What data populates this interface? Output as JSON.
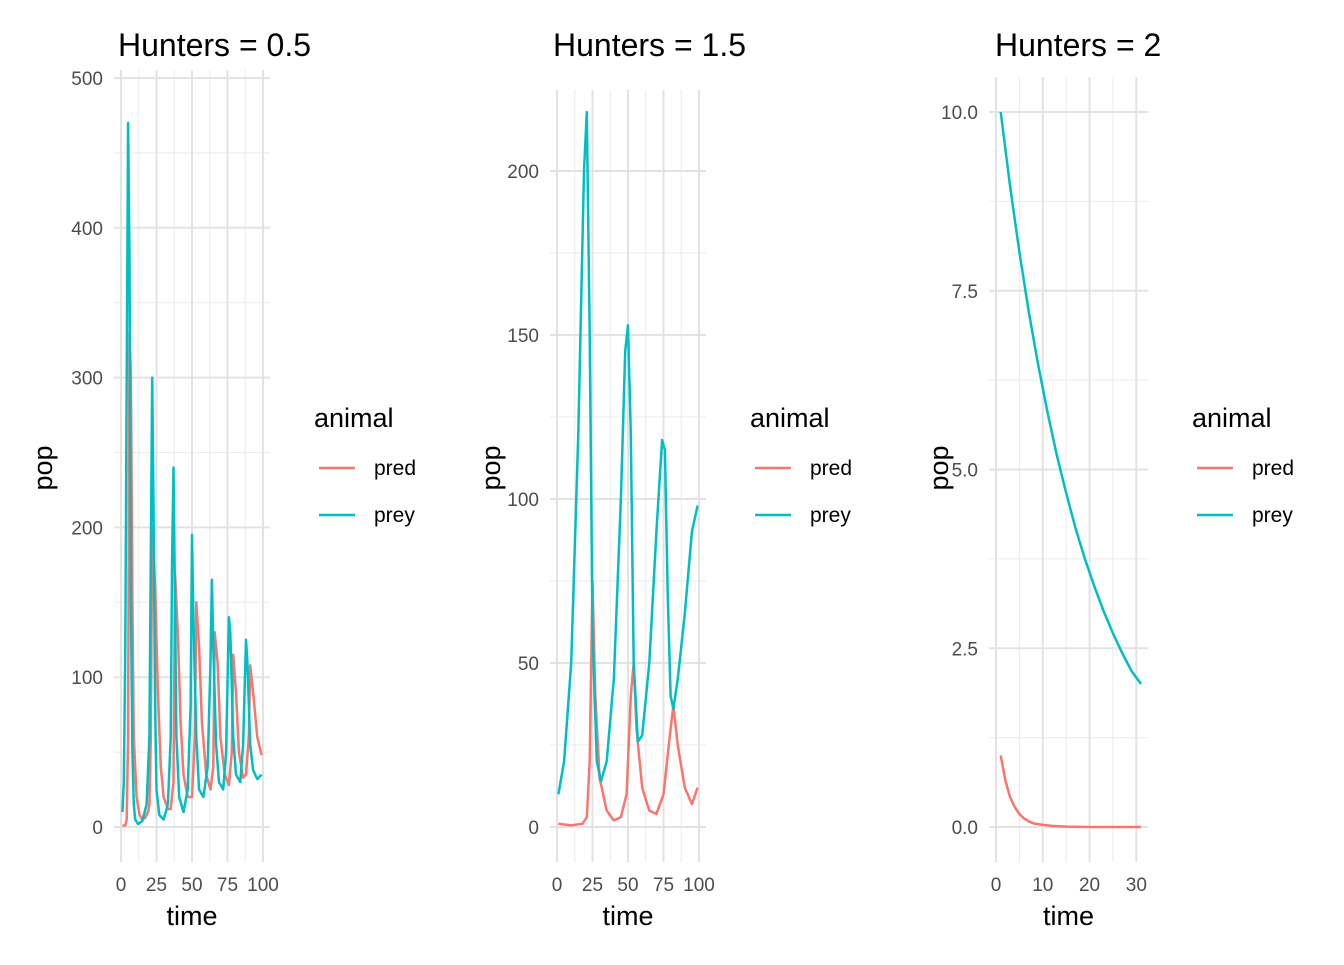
{
  "chart_data": [
    {
      "type": "line",
      "title": "Hunters = 0.5",
      "xlabel": "time",
      "ylabel": "pop",
      "xlim": [
        0,
        100
      ],
      "ylim": [
        0,
        500
      ],
      "x_ticks": [
        0,
        25,
        50,
        75,
        100
      ],
      "x_tick_labels": [
        "0",
        "25",
        "50",
        "75",
        "100"
      ],
      "y_ticks": [
        0,
        100,
        200,
        300,
        400,
        500
      ],
      "y_tick_labels": [
        "0",
        "100",
        "200",
        "300",
        "400",
        "500"
      ],
      "legend": {
        "title": "animal",
        "entries": [
          "pred",
          "prey"
        ],
        "position": "right"
      },
      "grid": true,
      "series": [
        {
          "name": "pred",
          "color": "#F8766D",
          "points": [
            [
              1,
              1
            ],
            [
              3,
              1
            ],
            [
              4,
              5
            ],
            [
              5,
              60
            ],
            [
              6,
              330
            ],
            [
              7,
              300
            ],
            [
              8,
              150
            ],
            [
              9,
              60
            ],
            [
              11,
              20
            ],
            [
              13,
              8
            ],
            [
              15,
              5
            ],
            [
              17,
              6
            ],
            [
              19,
              10
            ],
            [
              20,
              15
            ],
            [
              21,
              60
            ],
            [
              22,
              200
            ],
            [
              24,
              160
            ],
            [
              26,
              90
            ],
            [
              28,
              40
            ],
            [
              30,
              20
            ],
            [
              33,
              12
            ],
            [
              35,
              12
            ],
            [
              37,
              30
            ],
            [
              38,
              170
            ],
            [
              40,
              130
            ],
            [
              42,
              70
            ],
            [
              44,
              35
            ],
            [
              47,
              20
            ],
            [
              50,
              20
            ],
            [
              52,
              60
            ],
            [
              53,
              150
            ],
            [
              55,
              120
            ],
            [
              57,
              70
            ],
            [
              60,
              35
            ],
            [
              63,
              25
            ],
            [
              65,
              40
            ],
            [
              66,
              130
            ],
            [
              68,
              110
            ],
            [
              70,
              60
            ],
            [
              73,
              35
            ],
            [
              76,
              28
            ],
            [
              78,
              50
            ],
            [
              79,
              115
            ],
            [
              81,
              90
            ],
            [
              83,
              50
            ],
            [
              86,
              33
            ],
            [
              88,
              35
            ],
            [
              90,
              60
            ],
            [
              91,
              108
            ],
            [
              93,
              90
            ],
            [
              96,
              60
            ],
            [
              99,
              48
            ]
          ]
        },
        {
          "name": "prey",
          "color": "#00BFC4",
          "points": [
            [
              1,
              10
            ],
            [
              2,
              30
            ],
            [
              3,
              120
            ],
            [
              4,
              300
            ],
            [
              5,
              470
            ],
            [
              6,
              380
            ],
            [
              7,
              150
            ],
            [
              8,
              50
            ],
            [
              9,
              15
            ],
            [
              10,
              5
            ],
            [
              12,
              2
            ],
            [
              15,
              4
            ],
            [
              18,
              15
            ],
            [
              20,
              60
            ],
            [
              21,
              180
            ],
            [
              22,
              300
            ],
            [
              23,
              200
            ],
            [
              24,
              80
            ],
            [
              25,
              25
            ],
            [
              27,
              8
            ],
            [
              30,
              5
            ],
            [
              33,
              15
            ],
            [
              35,
              60
            ],
            [
              36,
              180
            ],
            [
              37,
              240
            ],
            [
              38,
              150
            ],
            [
              39,
              60
            ],
            [
              41,
              20
            ],
            [
              44,
              10
            ],
            [
              47,
              25
            ],
            [
              49,
              80
            ],
            [
              50,
              195
            ],
            [
              51,
              140
            ],
            [
              53,
              60
            ],
            [
              55,
              25
            ],
            [
              58,
              20
            ],
            [
              61,
              40
            ],
            [
              63,
              110
            ],
            [
              64,
              165
            ],
            [
              65,
              120
            ],
            [
              67,
              55
            ],
            [
              69,
              30
            ],
            [
              72,
              25
            ],
            [
              74,
              50
            ],
            [
              76,
              140
            ],
            [
              77,
              130
            ],
            [
              79,
              60
            ],
            [
              81,
              35
            ],
            [
              84,
              30
            ],
            [
              86,
              55
            ],
            [
              88,
              125
            ],
            [
              89,
              110
            ],
            [
              91,
              55
            ],
            [
              93,
              38
            ],
            [
              96,
              32
            ],
            [
              99,
              35
            ]
          ]
        }
      ]
    },
    {
      "type": "line",
      "title": "Hunters = 1.5",
      "xlabel": "time",
      "ylabel": "pop",
      "xlim": [
        0,
        100
      ],
      "ylim": [
        0,
        225
      ],
      "x_ticks": [
        0,
        25,
        50,
        75,
        100
      ],
      "x_tick_labels": [
        "0",
        "25",
        "50",
        "75",
        "100"
      ],
      "y_ticks": [
        0,
        50,
        100,
        150,
        200
      ],
      "y_tick_labels": [
        "0",
        "50",
        "100",
        "150",
        "200"
      ],
      "legend": {
        "title": "animal",
        "entries": [
          "pred",
          "prey"
        ],
        "position": "right"
      },
      "grid": true,
      "series": [
        {
          "name": "pred",
          "color": "#F8766D",
          "points": [
            [
              1,
              1
            ],
            [
              10,
              0.5
            ],
            [
              18,
              1
            ],
            [
              21,
              3
            ],
            [
              23,
              20
            ],
            [
              25,
              75
            ],
            [
              27,
              40
            ],
            [
              30,
              15
            ],
            [
              35,
              5
            ],
            [
              40,
              2
            ],
            [
              45,
              3
            ],
            [
              49,
              10
            ],
            [
              52,
              40
            ],
            [
              54,
              50
            ],
            [
              56,
              30
            ],
            [
              60,
              12
            ],
            [
              65,
              5
            ],
            [
              70,
              4
            ],
            [
              75,
              10
            ],
            [
              80,
              30
            ],
            [
              82,
              37
            ],
            [
              85,
              25
            ],
            [
              90,
              12
            ],
            [
              95,
              7
            ],
            [
              99,
              12
            ]
          ]
        },
        {
          "name": "prey",
          "color": "#00BFC4",
          "points": [
            [
              1,
              10
            ],
            [
              5,
              20
            ],
            [
              10,
              50
            ],
            [
              15,
              120
            ],
            [
              19,
              200
            ],
            [
              21,
              218
            ],
            [
              23,
              150
            ],
            [
              25,
              60
            ],
            [
              28,
              20
            ],
            [
              31,
              14
            ],
            [
              35,
              20
            ],
            [
              40,
              45
            ],
            [
              45,
              100
            ],
            [
              48,
              145
            ],
            [
              50,
              153
            ],
            [
              52,
              120
            ],
            [
              54,
              50
            ],
            [
              57,
              26
            ],
            [
              60,
              28
            ],
            [
              65,
              50
            ],
            [
              70,
              90
            ],
            [
              74,
              118
            ],
            [
              76,
              115
            ],
            [
              78,
              70
            ],
            [
              80,
              40
            ],
            [
              82,
              36
            ],
            [
              85,
              45
            ],
            [
              90,
              65
            ],
            [
              95,
              90
            ],
            [
              99,
              98
            ]
          ]
        }
      ]
    },
    {
      "type": "line",
      "title": "Hunters = 2",
      "xlabel": "time",
      "ylabel": "pop",
      "xlim": [
        0,
        31
      ],
      "ylim": [
        0,
        10
      ],
      "x_ticks": [
        0,
        10,
        20,
        30
      ],
      "x_tick_labels": [
        "0",
        "10",
        "20",
        "30"
      ],
      "y_ticks": [
        0,
        2.5,
        5,
        7.5,
        10
      ],
      "y_tick_labels": [
        "0.0",
        "2.5",
        "5.0",
        "7.5",
        "10.0"
      ],
      "legend": {
        "title": "animal",
        "entries": [
          "pred",
          "prey"
        ],
        "position": "right"
      },
      "grid": true,
      "series": [
        {
          "name": "pred",
          "color": "#F8766D",
          "points": [
            [
              1,
              1
            ],
            [
              2,
              0.65
            ],
            [
              3,
              0.42
            ],
            [
              4,
              0.28
            ],
            [
              5,
              0.18
            ],
            [
              6,
              0.12
            ],
            [
              7,
              0.08
            ],
            [
              8,
              0.05
            ],
            [
              10,
              0.03
            ],
            [
              12,
              0.015
            ],
            [
              15,
              0.005
            ],
            [
              20,
              0
            ],
            [
              25,
              0
            ],
            [
              31,
              0
            ]
          ]
        },
        {
          "name": "prey",
          "color": "#00BFC4",
          "points": [
            [
              1,
              10
            ],
            [
              3,
              8.97
            ],
            [
              5,
              8.04
            ],
            [
              7,
              7.21
            ],
            [
              9,
              6.47
            ],
            [
              11,
              5.8
            ],
            [
              13,
              5.2
            ],
            [
              15,
              4.67
            ],
            [
              17,
              4.18
            ],
            [
              19,
              3.75
            ],
            [
              21,
              3.37
            ],
            [
              23,
              3.02
            ],
            [
              25,
              2.71
            ],
            [
              27,
              2.43
            ],
            [
              29,
              2.18
            ],
            [
              31,
              2.0
            ]
          ]
        }
      ]
    }
  ]
}
